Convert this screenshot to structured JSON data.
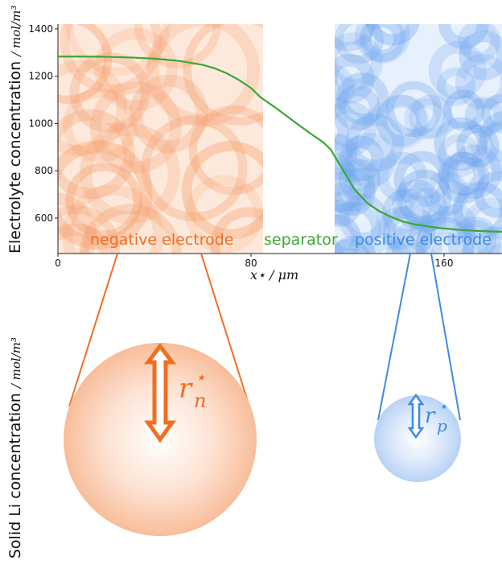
{
  "y_axis": {
    "title": "Electrolyte concentration",
    "unit": "/ mol/m³",
    "ticks": [
      600,
      800,
      1000,
      1200,
      1400
    ],
    "range": [
      450,
      1420
    ]
  },
  "x_axis": {
    "label": "x⋆ / μm",
    "ticks": [
      0,
      80,
      160
    ],
    "range": [
      0,
      184
    ]
  },
  "regions": {
    "negative": {
      "label": "negative electrode",
      "color": "#f26d21",
      "x_range": [
        0,
        84
      ]
    },
    "separator": {
      "label": "separator",
      "color": "#3aa832",
      "x_range": [
        84,
        113
      ]
    },
    "positive": {
      "label": "positive electrode",
      "color": "#3d8ae6",
      "x_range": [
        113,
        184
      ]
    }
  },
  "chart_data": {
    "type": "line",
    "title": "",
    "xlabel": "x⋆ / μm",
    "ylabel": "Electrolyte concentration / mol/m³",
    "xlim": [
      0,
      184
    ],
    "ylim": [
      450,
      1420
    ],
    "series": [
      {
        "color": "#3aa832",
        "x": [
          0,
          10,
          20,
          30,
          40,
          50,
          60,
          65,
          70,
          75,
          80,
          84,
          90,
          95,
          100,
          105,
          110,
          113,
          118,
          123,
          128,
          133,
          138,
          143,
          148,
          153,
          158,
          163,
          168,
          173,
          178,
          184
        ],
        "y": [
          1283,
          1283,
          1282,
          1279,
          1274,
          1265,
          1248,
          1233,
          1212,
          1184,
          1150,
          1110,
          1068,
          1030,
          992,
          955,
          920,
          890,
          805,
          720,
          665,
          630,
          605,
          585,
          573,
          565,
          558,
          553,
          549,
          546,
          544,
          542
        ]
      }
    ]
  },
  "particles": {
    "left_axis_title": "Solid Li concentration",
    "left_axis_unit": "/ mol/m³",
    "negative": {
      "label_main": "r",
      "label_sub": "n",
      "label_sup": "⋆"
    },
    "positive": {
      "label_main": "r",
      "label_sub": "p",
      "label_sup": "⋆"
    }
  }
}
